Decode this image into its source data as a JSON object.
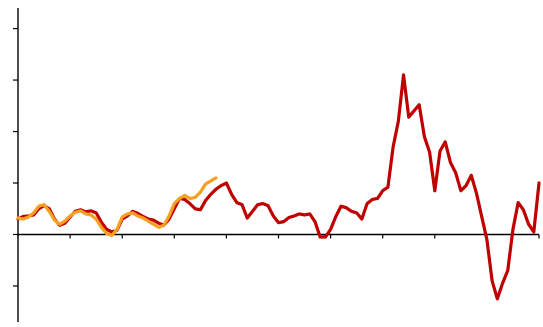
{
  "chart_data": {
    "type": "line",
    "title": "",
    "xlabel": "",
    "ylabel": "",
    "xlim": [
      0,
      100
    ],
    "ylim": [
      -1.7,
      4.4
    ],
    "x_ticks": [
      0,
      10,
      20,
      30,
      40,
      50,
      60,
      70,
      80,
      90,
      100
    ],
    "y_ticks": [
      -1,
      0,
      1,
      2,
      3,
      4
    ],
    "grid": false,
    "legend": "none",
    "series": [
      {
        "color": "#c00000",
        "stroke_width": 3.2,
        "points": [
          [
            0,
            0.3
          ],
          [
            1,
            0.35
          ],
          [
            2,
            0.36
          ],
          [
            3,
            0.38
          ],
          [
            4,
            0.5
          ],
          [
            5,
            0.56
          ],
          [
            6,
            0.5
          ],
          [
            7,
            0.3
          ],
          [
            8,
            0.18
          ],
          [
            9,
            0.22
          ],
          [
            10,
            0.34
          ],
          [
            11,
            0.45
          ],
          [
            12,
            0.48
          ],
          [
            13,
            0.44
          ],
          [
            14,
            0.46
          ],
          [
            15,
            0.42
          ],
          [
            16,
            0.24
          ],
          [
            17,
            0.1
          ],
          [
            18,
            0.05
          ],
          [
            19,
            0.08
          ],
          [
            20,
            0.3
          ],
          [
            21,
            0.36
          ],
          [
            22,
            0.45
          ],
          [
            23,
            0.41
          ],
          [
            24,
            0.35
          ],
          [
            25,
            0.3
          ],
          [
            26,
            0.28
          ],
          [
            27,
            0.22
          ],
          [
            28,
            0.18
          ],
          [
            29,
            0.3
          ],
          [
            30,
            0.5
          ],
          [
            31,
            0.7
          ],
          [
            32,
            0.68
          ],
          [
            33,
            0.6
          ],
          [
            34,
            0.5
          ],
          [
            35,
            0.48
          ],
          [
            36,
            0.66
          ],
          [
            37,
            0.78
          ],
          [
            38,
            0.88
          ],
          [
            39,
            0.95
          ],
          [
            40,
            1.0
          ],
          [
            41,
            0.78
          ],
          [
            42,
            0.62
          ],
          [
            43,
            0.58
          ],
          [
            44,
            0.32
          ],
          [
            45,
            0.45
          ],
          [
            46,
            0.58
          ],
          [
            47,
            0.6
          ],
          [
            48,
            0.56
          ],
          [
            49,
            0.36
          ],
          [
            50,
            0.23
          ],
          [
            51,
            0.25
          ],
          [
            52,
            0.33
          ],
          [
            53,
            0.36
          ],
          [
            54,
            0.4
          ],
          [
            55,
            0.38
          ],
          [
            56,
            0.4
          ],
          [
            57,
            0.25
          ],
          [
            58,
            -0.05
          ],
          [
            59,
            -0.05
          ],
          [
            60,
            0.1
          ],
          [
            61,
            0.35
          ],
          [
            62,
            0.55
          ],
          [
            63,
            0.52
          ],
          [
            64,
            0.45
          ],
          [
            65,
            0.42
          ],
          [
            66,
            0.3
          ],
          [
            67,
            0.6
          ],
          [
            68,
            0.68
          ],
          [
            69,
            0.7
          ],
          [
            70,
            0.85
          ],
          [
            71,
            0.92
          ],
          [
            72,
            1.7
          ],
          [
            73,
            2.2
          ],
          [
            74,
            3.1
          ],
          [
            75,
            2.28
          ],
          [
            76,
            2.4
          ],
          [
            77,
            2.52
          ],
          [
            78,
            1.9
          ],
          [
            79,
            1.6
          ],
          [
            80,
            0.85
          ],
          [
            81,
            1.62
          ],
          [
            82,
            1.8
          ],
          [
            83,
            1.4
          ],
          [
            84,
            1.2
          ],
          [
            85,
            0.85
          ],
          [
            86,
            0.95
          ],
          [
            87,
            1.15
          ],
          [
            88,
            0.8
          ],
          [
            89,
            0.35
          ],
          [
            90,
            -0.1
          ],
          [
            91,
            -0.9
          ],
          [
            92,
            -1.25
          ],
          [
            93,
            -0.95
          ],
          [
            94,
            -0.7
          ],
          [
            95,
            0.1
          ],
          [
            96,
            0.62
          ],
          [
            97,
            0.48
          ],
          [
            98,
            0.2
          ],
          [
            99,
            0.05
          ],
          [
            100,
            1.0
          ]
        ]
      },
      {
        "color": "#f5a020",
        "stroke_width": 3.2,
        "points": [
          [
            0,
            0.32
          ],
          [
            1,
            0.3
          ],
          [
            2,
            0.34
          ],
          [
            3,
            0.42
          ],
          [
            4,
            0.55
          ],
          [
            5,
            0.58
          ],
          [
            6,
            0.45
          ],
          [
            7,
            0.28
          ],
          [
            8,
            0.2
          ],
          [
            9,
            0.26
          ],
          [
            10,
            0.36
          ],
          [
            11,
            0.43
          ],
          [
            12,
            0.46
          ],
          [
            13,
            0.4
          ],
          [
            14,
            0.38
          ],
          [
            15,
            0.3
          ],
          [
            16,
            0.14
          ],
          [
            17,
            0.02
          ],
          [
            18,
            -0.02
          ],
          [
            19,
            0.1
          ],
          [
            20,
            0.34
          ],
          [
            21,
            0.4
          ],
          [
            22,
            0.42
          ],
          [
            23,
            0.36
          ],
          [
            24,
            0.32
          ],
          [
            25,
            0.26
          ],
          [
            26,
            0.2
          ],
          [
            27,
            0.14
          ],
          [
            28,
            0.18
          ],
          [
            29,
            0.36
          ],
          [
            30,
            0.6
          ],
          [
            31,
            0.7
          ],
          [
            32,
            0.76
          ],
          [
            33,
            0.7
          ],
          [
            34,
            0.72
          ],
          [
            35,
            0.82
          ],
          [
            36,
            0.98
          ],
          [
            37,
            1.04
          ],
          [
            38,
            1.1
          ]
        ]
      }
    ]
  }
}
